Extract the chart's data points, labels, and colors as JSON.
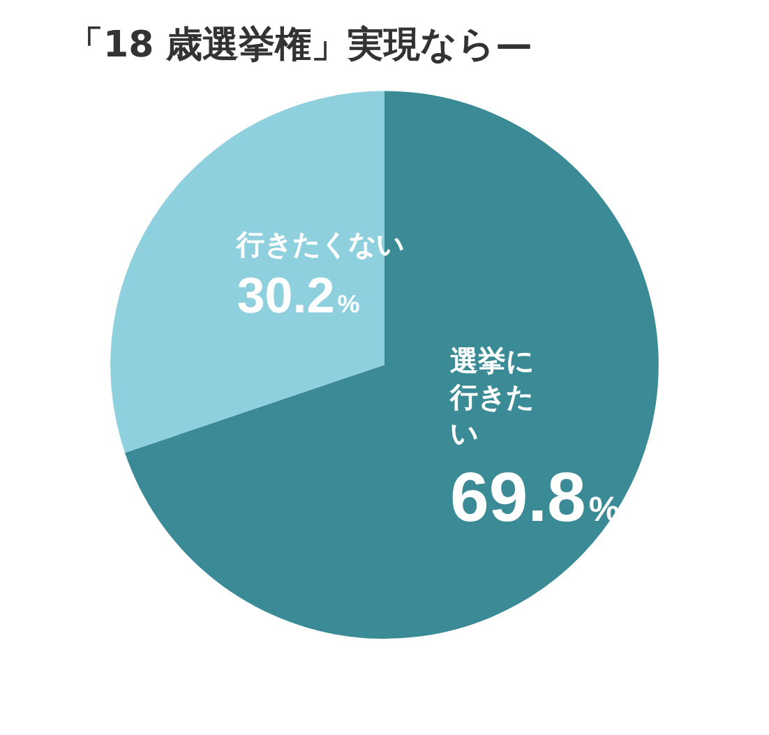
{
  "chart_data": {
    "type": "pie",
    "title": "「18 歳選挙権」実現なら—",
    "categories": [
      "選挙に行きたい",
      "行きたくない"
    ],
    "values": [
      69.8,
      30.2
    ],
    "colors": [
      "#3a8b96",
      "#8fd0df"
    ],
    "value_labels": [
      "69.8%",
      "30.2%"
    ],
    "legend": false
  }
}
